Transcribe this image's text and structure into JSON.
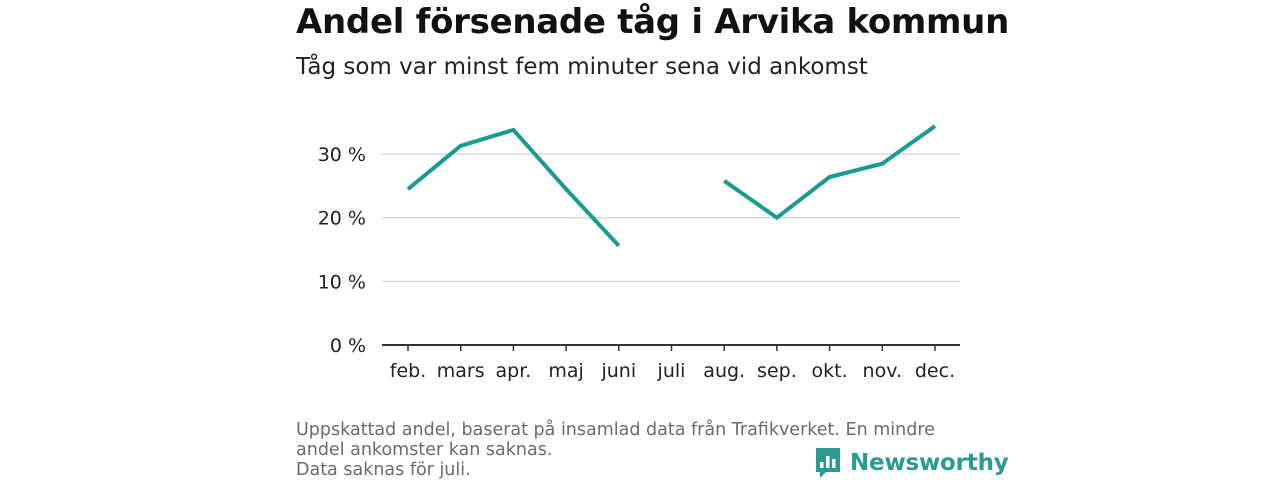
{
  "title": "Andel försenade tåg i Arvika kommun",
  "subtitle": "Tåg som var minst fem minuter sena vid ankomst",
  "colors": {
    "line": "#1a9b92",
    "grid": "#d9d9d9",
    "axis": "#333333",
    "logo": "#2a9a92"
  },
  "chart_data": {
    "type": "line",
    "title": "Andel försenade tåg i Arvika kommun",
    "subtitle": "Tåg som var minst fem minuter sena vid ankomst",
    "xlabel": "",
    "ylabel": "",
    "categories": [
      "feb.",
      "mars",
      "apr.",
      "maj",
      "juni",
      "juli",
      "aug.",
      "sep.",
      "okt.",
      "nov.",
      "dec."
    ],
    "yticks": [
      0,
      10,
      20,
      30
    ],
    "ytick_labels": [
      "0 %",
      "10 %",
      "20 %",
      "30 %"
    ],
    "ylim": [
      0,
      35
    ],
    "grid": true,
    "series": [
      {
        "values": [
          24.5,
          31.3,
          33.8,
          24.5,
          15.6,
          null,
          25.8,
          20.0,
          26.4,
          28.5,
          34.4
        ]
      }
    ]
  },
  "notes": {
    "line1": "Uppskattad andel, baserat på insamlad data från Trafikverket. En mindre andel ankomster kan saknas.",
    "line2": "Data saknas för juli."
  },
  "logo": {
    "text": "Newsworthy",
    "icon": "bar-chart-speech-bubble-icon"
  }
}
